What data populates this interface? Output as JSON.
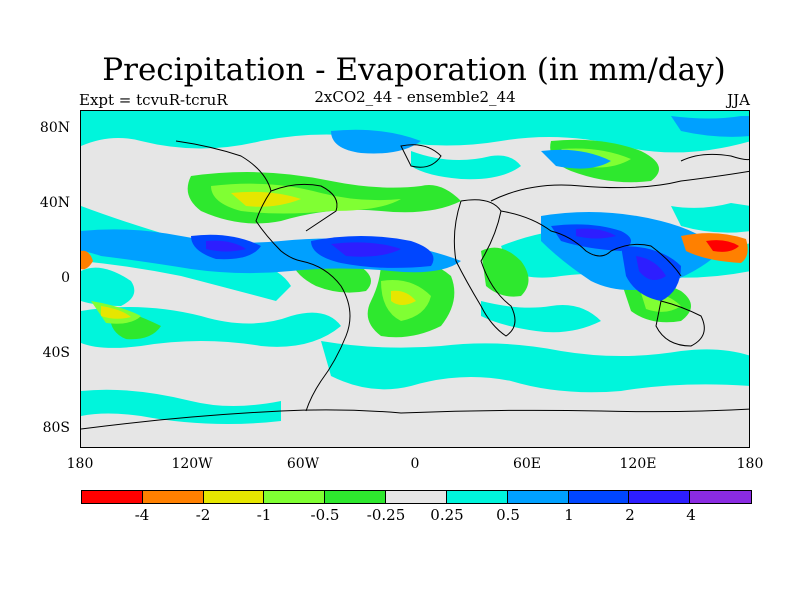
{
  "title": "Precipitation - Evaporation (in mm/day)",
  "subtitle_left": "Expt = tcvuR-tcruR",
  "subtitle_center": "2xCO2_44 - ensemble2_44",
  "subtitle_right": "JJA",
  "lat_labels": [
    "80N",
    "40N",
    "0",
    "40S",
    "80S"
  ],
  "lon_labels": [
    "180",
    "120W",
    "60W",
    "0",
    "60E",
    "120E",
    "180"
  ],
  "colorbar": {
    "colors": [
      "#ff0000",
      "#ff8000",
      "#e6e600",
      "#80ff33",
      "#2ee82e",
      "#e6e6e6",
      "#00f5dc",
      "#00a0ff",
      "#0046ff",
      "#2d1eff",
      "#8a2be2"
    ],
    "labels": [
      "-4",
      "-2",
      "-1",
      "-0.5",
      "-0.25",
      "0.25",
      "0.5",
      "1",
      "2",
      "4"
    ]
  }
}
